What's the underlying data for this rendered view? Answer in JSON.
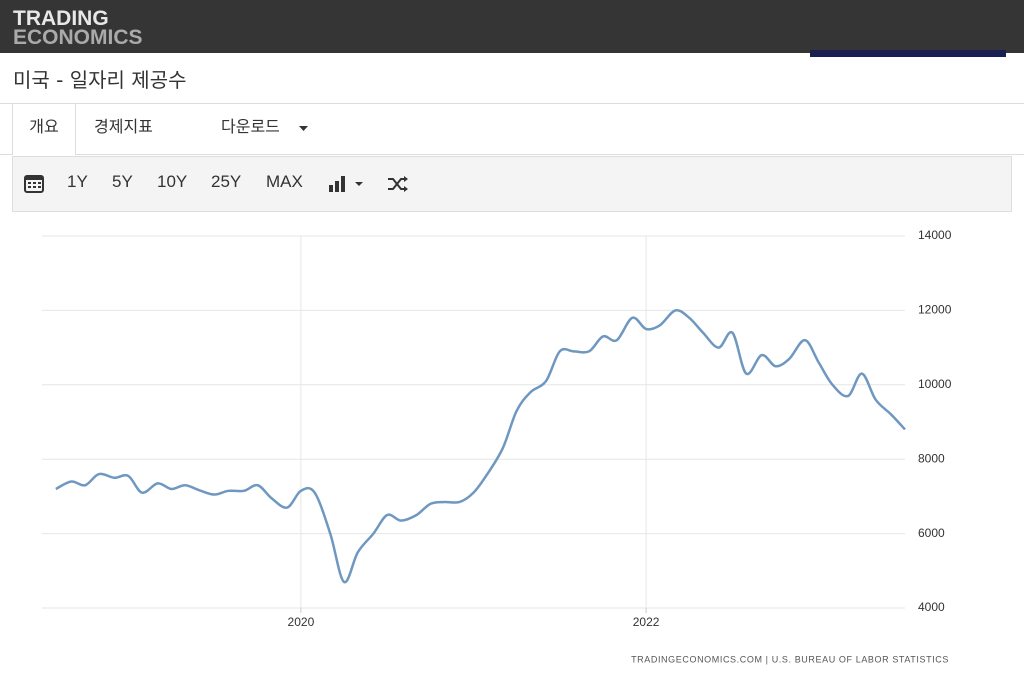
{
  "header": {
    "logo_top": "TRADING",
    "logo_bottom": "ECONOMICS"
  },
  "title": "미국 - 일자리 제공수",
  "tabs": [
    "개요",
    "경제지표",
    "다운로드"
  ],
  "toolbar": [
    "1Y",
    "5Y",
    "10Y",
    "25Y",
    "MAX"
  ],
  "chart_data": {
    "type": "line",
    "source": "TRADINGECONOMICS.COM | U.S. BUREAU OF LABOR STATISTICS",
    "x": [
      2018.58,
      2018.67,
      2018.75,
      2018.83,
      2018.92,
      2019,
      2019.08,
      2019.17,
      2019.25,
      2019.33,
      2019.42,
      2019.5,
      2019.58,
      2019.67,
      2019.75,
      2019.83,
      2019.92,
      2020,
      2020.08,
      2020.17,
      2020.25,
      2020.33,
      2020.42,
      2020.5,
      2020.58,
      2020.67,
      2020.75,
      2020.83,
      2020.92,
      2021,
      2021.08,
      2021.17,
      2021.25,
      2021.33,
      2021.42,
      2021.5,
      2021.58,
      2021.67,
      2021.75,
      2021.83,
      2021.92,
      2022,
      2022.08,
      2022.17,
      2022.25,
      2022.33,
      2022.42,
      2022.5,
      2022.58,
      2022.67,
      2022.75,
      2022.83,
      2022.92,
      2023,
      2023.08,
      2023.17,
      2023.25,
      2023.33,
      2023.42,
      2023.5
    ],
    "series": [
      {
        "color": "#6f98c1",
        "values": [
          7200,
          7400,
          7300,
          7600,
          7500,
          7550,
          7100,
          7350,
          7200,
          7300,
          7150,
          7050,
          7150,
          7150,
          7300,
          6950,
          6700,
          7150,
          7100,
          6000,
          4700,
          5500,
          6000,
          6500,
          6350,
          6500,
          6800,
          6850,
          6850,
          7100,
          7600,
          8300,
          9300,
          9800,
          10100,
          10900,
          10900,
          10900,
          11300,
          11200,
          11800,
          11500,
          11600,
          12000,
          11800,
          11400,
          11000,
          11400,
          10300,
          10800,
          10500,
          10700,
          11200,
          10600,
          10000,
          9700,
          10300,
          9600,
          9200,
          8800
        ]
      }
    ],
    "xlim": [
      2018.5,
      2023.5
    ],
    "xticks": [
      2020,
      2022
    ],
    "ylim": [
      4000,
      14000
    ],
    "yticks": [
      4000,
      6000,
      8000,
      10000,
      12000,
      14000
    ],
    "grid": true
  }
}
